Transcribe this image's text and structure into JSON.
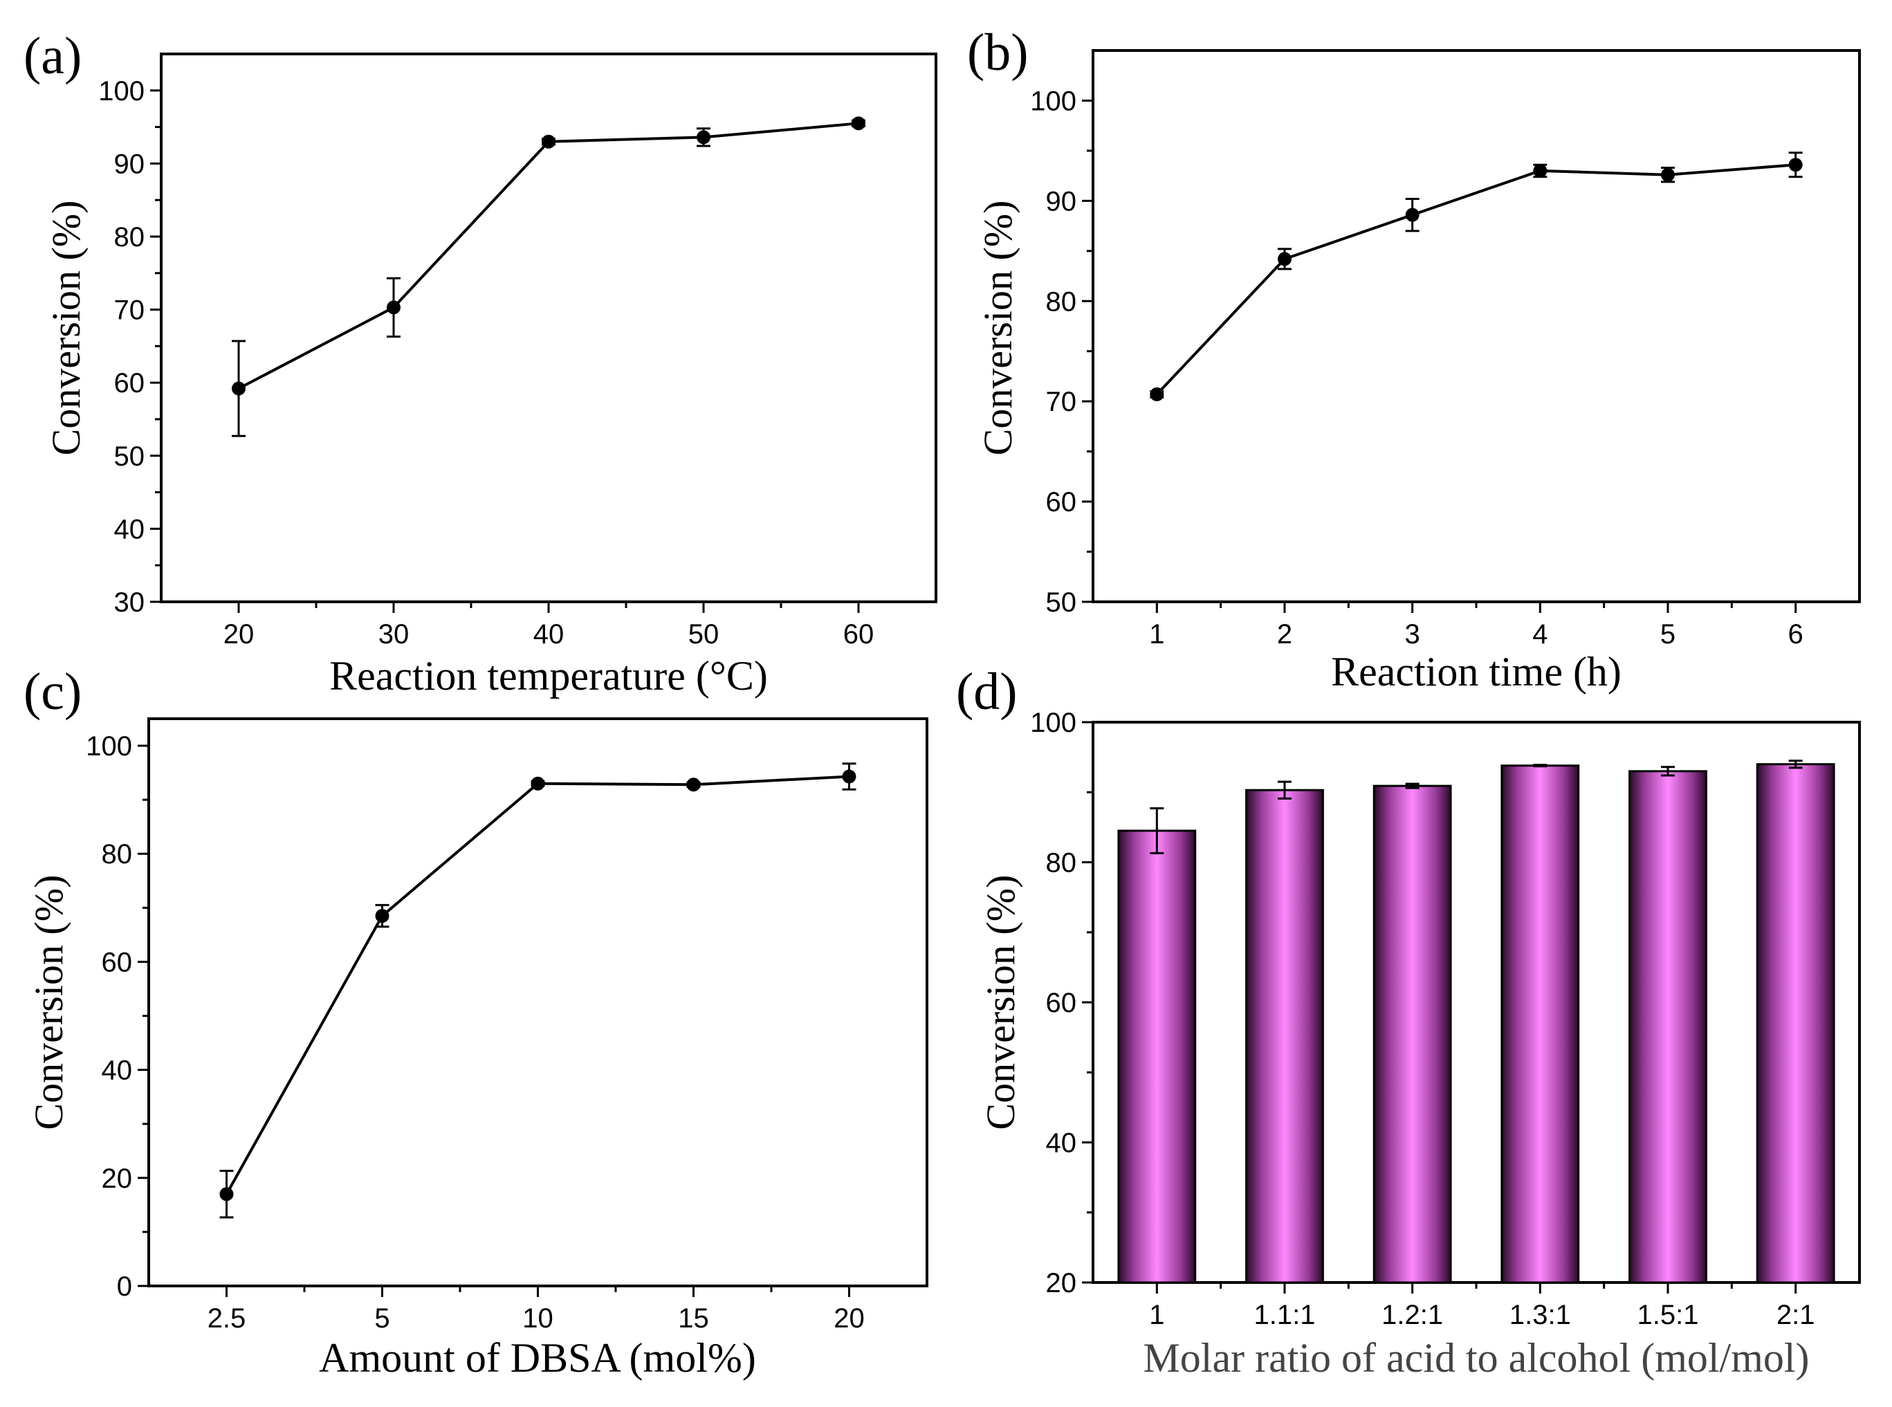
{
  "chart_data": [
    {
      "panel": "(a)",
      "type": "line",
      "x": [
        20,
        30,
        40,
        50,
        60
      ],
      "values": [
        59.2,
        70.3,
        93.0,
        93.6,
        95.5
      ],
      "errors": [
        6.5,
        4.0,
        0.4,
        1.2,
        0.4
      ],
      "xlabel": "Reaction temperature (°C)",
      "ylabel": "Conversion  (%)",
      "xlim": [
        15,
        65
      ],
      "ylim": [
        30,
        105
      ],
      "xticks": [
        20,
        30,
        40,
        50,
        60
      ],
      "yticks": [
        30,
        40,
        50,
        60,
        70,
        80,
        90,
        100
      ]
    },
    {
      "panel": "(b)",
      "type": "line",
      "x": [
        1,
        2,
        3,
        4,
        5,
        6
      ],
      "values": [
        70.7,
        84.2,
        88.6,
        93.0,
        92.6,
        93.6
      ],
      "errors": [
        0.3,
        1.0,
        1.6,
        0.6,
        0.7,
        1.2
      ],
      "xlabel": "Reaction time (h)",
      "ylabel": "Conversion  (%)",
      "xlim": [
        0.5,
        6.5
      ],
      "ylim": [
        50,
        105
      ],
      "xticks": [
        1,
        2,
        3,
        4,
        5,
        6
      ],
      "yticks": [
        50,
        60,
        70,
        80,
        90,
        100
      ]
    },
    {
      "panel": "(c)",
      "type": "line",
      "categories": [
        "2.5",
        "5",
        "10",
        "15",
        "20"
      ],
      "values": [
        17.0,
        68.5,
        93.0,
        92.8,
        94.3
      ],
      "errors": [
        4.3,
        2.0,
        0.4,
        0.4,
        2.4
      ],
      "xlabel": "Amount of DBSA (mol%)",
      "ylabel": "Conversion  (%)",
      "ylim": [
        0,
        105
      ],
      "yticks": [
        0,
        20,
        40,
        60,
        80,
        100
      ]
    },
    {
      "panel": "(d)",
      "type": "bar",
      "categories": [
        "1",
        "1.1:1",
        "1.2:1",
        "1.3:1",
        "1.5:1",
        "2:1"
      ],
      "values": [
        84.5,
        90.3,
        90.9,
        93.8,
        93.0,
        94.0
      ],
      "errors": [
        3.2,
        1.2,
        0.3,
        0.1,
        0.6,
        0.5
      ],
      "xlabel": "Molar ratio of  acid to alcohol (mol/mol)",
      "ylabel": "Conversion (%)",
      "ylim": [
        20,
        100
      ],
      "yticks": [
        20,
        40,
        60,
        80,
        100
      ],
      "bar_color": "#ff88ff"
    }
  ]
}
